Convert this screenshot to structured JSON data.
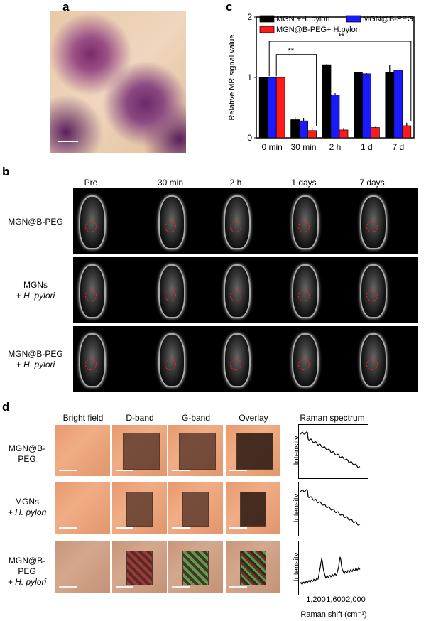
{
  "panels": {
    "a": "a",
    "b": "b",
    "c": "c",
    "d": "d"
  },
  "chart_data": {
    "type": "bar",
    "categories": [
      "0 min",
      "30 min",
      "2 h",
      "1 d",
      "7 d"
    ],
    "series": [
      {
        "name": "MGN +H. pylori",
        "color": "#000000",
        "values": [
          1.0,
          0.3,
          1.21,
          1.08,
          1.08
        ],
        "errors": [
          0,
          0.05,
          0.01,
          0.01,
          0.12
        ]
      },
      {
        "name": "MGN@B-PEG",
        "color": "#1a1aff",
        "values": [
          1.0,
          0.28,
          0.71,
          1.06,
          1.12
        ],
        "errors": [
          0,
          0.05,
          0.03,
          0.01,
          0.01
        ]
      },
      {
        "name": "MGN@B-PEG+ H.pylori",
        "color": "#ff1a1a",
        "values": [
          1.0,
          0.12,
          0.13,
          0.17,
          0.2
        ],
        "errors": [
          0,
          0.05,
          0.03,
          0.01,
          0.05
        ]
      }
    ],
    "ylabel": "Relative MR signal value",
    "ylim": [
      0,
      2
    ],
    "yticks": [
      "0",
      "1",
      "2"
    ],
    "significance": [
      "**",
      "**"
    ]
  },
  "panel_b": {
    "columns": [
      "Pre",
      "30 min",
      "2 h",
      "1 days",
      "7 days"
    ],
    "rows": [
      [
        "MGN@B-PEG",
        ""
      ],
      [
        "MGNs",
        "+ H. pylori"
      ],
      [
        "MGN@B-PEG",
        "+ H. pylori"
      ]
    ]
  },
  "panel_d": {
    "columns": [
      "Bright field",
      "D-band",
      "G-band",
      "Overlay",
      "Raman spectrum"
    ],
    "rows": [
      [
        "MGN@B-PEG",
        ""
      ],
      [
        "MGNs",
        "+ H. pylori"
      ],
      [
        "MGN@B-PEG",
        "+ H. pylori"
      ]
    ],
    "spectrum_ylabel": "Intensity",
    "xticks": [
      "1,200",
      "1,600",
      "2,000"
    ],
    "xlabel": "Raman shift (cm⁻¹)"
  }
}
